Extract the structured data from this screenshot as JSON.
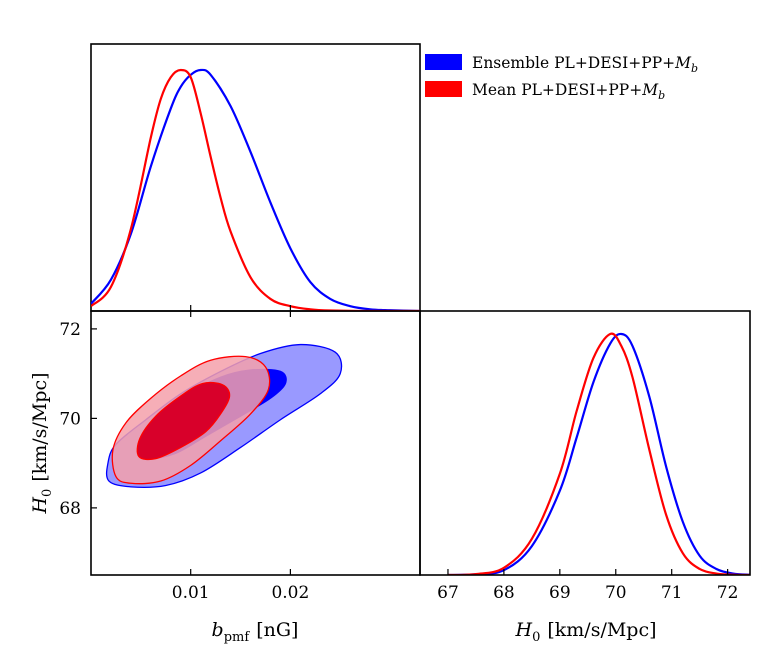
{
  "chart_data": [
    {
      "type": "line",
      "panel": "marginal posterior of b_pmf",
      "x_range": [
        0.0,
        0.033
      ],
      "ylim": [
        0,
        1.0
      ],
      "series": [
        {
          "name": "Ensemble PL+DESI+PP+M_b",
          "x": [
            0.0,
            0.002,
            0.004,
            0.006,
            0.008,
            0.009,
            0.01,
            0.011,
            0.012,
            0.014,
            0.016,
            0.018,
            0.02,
            0.022,
            0.024,
            0.026,
            0.028,
            0.03,
            0.033
          ],
          "values": [
            0.03,
            0.13,
            0.32,
            0.6,
            0.84,
            0.93,
            0.98,
            1.0,
            0.98,
            0.85,
            0.66,
            0.45,
            0.26,
            0.12,
            0.05,
            0.02,
            0.007,
            0.003,
            0.0
          ]
        },
        {
          "name": "Mean PL+DESI+PP+M_b",
          "x": [
            0.0,
            0.002,
            0.004,
            0.006,
            0.007,
            0.008,
            0.009,
            0.01,
            0.011,
            0.012,
            0.013,
            0.014,
            0.016,
            0.018,
            0.02,
            0.022,
            0.024,
            0.027,
            0.033
          ],
          "values": [
            0.02,
            0.1,
            0.34,
            0.72,
            0.88,
            0.97,
            1.0,
            0.97,
            0.82,
            0.64,
            0.47,
            0.33,
            0.14,
            0.05,
            0.02,
            0.007,
            0.002,
            0.0,
            0.0
          ]
        }
      ]
    },
    {
      "type": "contour",
      "panel": "joint posterior of b_pmf and H_0",
      "xlabel_x": "b",
      "xlabel_x_sub": "pmf",
      "xlabel_unit": "[nG]",
      "ylabel_y": "H",
      "ylabel_y_sub": "0",
      "ylabel_unit": "[km/s/Mpc]",
      "xlim": [
        0.0,
        0.033
      ],
      "ylim": [
        66.5,
        72.4
      ],
      "x_ticks": [
        0.01,
        0.02
      ],
      "x_ticklabels": [
        "0.01",
        "0.02"
      ],
      "y_ticks": [
        68,
        70,
        72
      ],
      "y_ticklabels": [
        "68",
        "70",
        "72"
      ],
      "series": [
        {
          "name": "Ensemble PL+DESI+PP+M_b",
          "contours": [
            {
              "level": "95%",
              "points": [
                [
                  0.0018,
                  68.6
                ],
                [
                  0.004,
                  68.47
                ],
                [
                  0.0075,
                  68.5
                ],
                [
                  0.011,
                  68.78
                ],
                [
                  0.015,
                  69.35
                ],
                [
                  0.019,
                  69.97
                ],
                [
                  0.023,
                  70.55
                ],
                [
                  0.025,
                  71.0
                ],
                [
                  0.0245,
                  71.48
                ],
                [
                  0.021,
                  71.65
                ],
                [
                  0.017,
                  71.45
                ],
                [
                  0.013,
                  71.05
                ],
                [
                  0.009,
                  70.55
                ],
                [
                  0.0055,
                  69.97
                ],
                [
                  0.0025,
                  69.42
                ],
                [
                  0.0017,
                  69.0
                ]
              ]
            },
            {
              "level": "68%",
              "points": [
                [
                  0.0048,
                  69.25
                ],
                [
                  0.0058,
                  69.1
                ],
                [
                  0.0085,
                  69.22
                ],
                [
                  0.0115,
                  69.6
                ],
                [
                  0.015,
                  70.05
                ],
                [
                  0.018,
                  70.45
                ],
                [
                  0.0195,
                  70.78
                ],
                [
                  0.019,
                  71.05
                ],
                [
                  0.016,
                  71.08
                ],
                [
                  0.013,
                  70.92
                ],
                [
                  0.0098,
                  70.55
                ],
                [
                  0.007,
                  70.05
                ],
                [
                  0.0052,
                  69.6
                ]
              ]
            }
          ]
        },
        {
          "name": "Mean PL+DESI+PP+M_b",
          "contours": [
            {
              "level": "95%",
              "points": [
                [
                  0.0025,
                  68.7
                ],
                [
                  0.004,
                  68.55
                ],
                [
                  0.007,
                  68.6
                ],
                [
                  0.01,
                  68.95
                ],
                [
                  0.013,
                  69.5
                ],
                [
                  0.016,
                  70.1
                ],
                [
                  0.0178,
                  70.65
                ],
                [
                  0.0175,
                  71.15
                ],
                [
                  0.0155,
                  71.38
                ],
                [
                  0.012,
                  71.3
                ],
                [
                  0.009,
                  70.95
                ],
                [
                  0.006,
                  70.45
                ],
                [
                  0.0035,
                  69.9
                ],
                [
                  0.0022,
                  69.3
                ]
              ]
            },
            {
              "level": "68%",
              "points": [
                [
                  0.0048,
                  69.15
                ],
                [
                  0.0065,
                  69.1
                ],
                [
                  0.009,
                  69.35
                ],
                [
                  0.0115,
                  69.7
                ],
                [
                  0.013,
                  70.1
                ],
                [
                  0.0139,
                  70.5
                ],
                [
                  0.0132,
                  70.75
                ],
                [
                  0.0112,
                  70.78
                ],
                [
                  0.009,
                  70.5
                ],
                [
                  0.0065,
                  70.05
                ],
                [
                  0.0049,
                  69.55
                ]
              ]
            }
          ]
        }
      ]
    },
    {
      "type": "line",
      "panel": "marginal posterior of H_0",
      "xlabel_x": "H",
      "xlabel_x_sub": "0",
      "xlabel_unit": "[km/s/Mpc]",
      "xlim": [
        66.5,
        72.4
      ],
      "ylim": [
        0,
        1.0
      ],
      "x_ticks": [
        67,
        68,
        69,
        70,
        71,
        72
      ],
      "x_ticklabels": [
        "67",
        "68",
        "69",
        "70",
        "71",
        "72"
      ],
      "series": [
        {
          "name": "Ensemble PL+DESI+PP+M_b",
          "x": [
            67.0,
            67.5,
            68.0,
            68.5,
            69.0,
            69.3,
            69.6,
            69.9,
            70.1,
            70.3,
            70.6,
            70.9,
            71.2,
            71.5,
            71.8,
            72.1,
            72.4
          ],
          "values": [
            0.0,
            0.003,
            0.02,
            0.12,
            0.35,
            0.57,
            0.8,
            0.96,
            1.0,
            0.95,
            0.74,
            0.45,
            0.22,
            0.08,
            0.025,
            0.006,
            0.001
          ]
        },
        {
          "name": "Mean PL+DESI+PP+M_b",
          "x": [
            67.0,
            67.5,
            68.0,
            68.5,
            69.0,
            69.3,
            69.6,
            69.9,
            70.1,
            70.3,
            70.6,
            70.9,
            71.2,
            71.5,
            71.8,
            72.1,
            72.4
          ],
          "values": [
            0.0,
            0.004,
            0.03,
            0.15,
            0.42,
            0.68,
            0.9,
            1.0,
            0.95,
            0.82,
            0.52,
            0.25,
            0.09,
            0.025,
            0.006,
            0.001,
            0.0
          ]
        }
      ]
    }
  ],
  "legend": {
    "placement": "top-right",
    "entries": [
      {
        "label_prefix": "Ensemble PL+DESI+PP+",
        "label_math": "M",
        "label_sub": "b",
        "color": "#0000ff"
      },
      {
        "label_prefix": "Mean PL+DESI+PP+",
        "label_math": "M",
        "label_sub": "b",
        "color": "#ff0000"
      }
    ]
  },
  "colors": {
    "ensemble_line": "#0000ff",
    "ensemble_fill_95": "#9999ff",
    "ensemble_fill_68": "#0000ff",
    "mean_line": "#ff0000",
    "mean_fill_95": "#f4a0aa",
    "mean_fill_68": "#d8002a"
  }
}
